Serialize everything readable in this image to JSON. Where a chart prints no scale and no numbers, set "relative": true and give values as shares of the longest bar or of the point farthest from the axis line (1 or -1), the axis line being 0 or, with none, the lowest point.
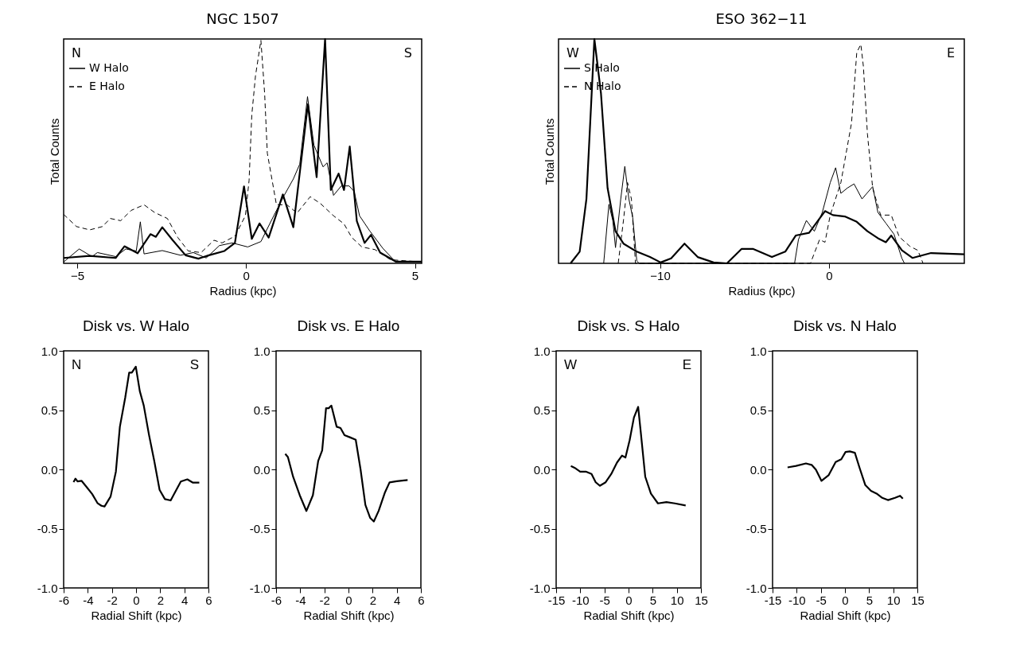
{
  "chart_data": [
    {
      "type": "line",
      "title": "NGC 1507",
      "xlabel": "Radius (kpc)",
      "ylabel": "Total Counts",
      "relative": true,
      "xlim": [
        -5.4,
        5.2
      ],
      "xticks": [
        {
          "value": -5,
          "label": "−5"
        },
        0,
        5
      ],
      "legend": "top left",
      "annotations": [
        "N",
        "S"
      ],
      "series": [
        {
          "color": "#000000",
          "x": [
            -5.4,
            -4.63,
            -3.86,
            -3.6,
            -3.21,
            -2.83,
            -2.67,
            -2.48,
            -2.17,
            -1.79,
            -1.41,
            -1.1,
            -0.64,
            -0.33,
            -0.06,
            0.17,
            0.4,
            0.67,
            1.09,
            1.4,
            1.83,
            2.09,
            2.34,
            2.51,
            2.74,
            2.9,
            3.07,
            3.28,
            3.51,
            3.7,
            3.97,
            4.43,
            5.2
          ],
          "values": [
            0.024,
            0.033,
            0.024,
            0.076,
            0.045,
            0.13,
            0.118,
            0.161,
            0.103,
            0.036,
            0.021,
            0.036,
            0.055,
            0.091,
            0.343,
            0.109,
            0.178,
            0.115,
            0.307,
            0.161,
            0.709,
            0.384,
            1.0,
            0.327,
            0.4,
            0.327,
            0.521,
            0.188,
            0.091,
            0.127,
            0.048,
            0.008,
            0.008
          ]
        },
        {
          "name": "W Halo",
          "color": "#000000",
          "line_style": "solid",
          "x": [
            -5.4,
            -4.94,
            -4.56,
            -4.4,
            -3.86,
            -3.56,
            -3.25,
            -3.13,
            -3.02,
            -2.48,
            -1.94,
            -1.56,
            -1.18,
            -0.79,
            -0.41,
            0.05,
            0.44,
            0.74,
            1.13,
            1.4,
            1.59,
            1.82,
            2.01,
            2.28,
            2.4,
            2.59,
            2.82,
            3.05,
            3.2,
            3.36,
            3.66,
            4.05,
            4.43,
            5.2
          ],
          "values": [
            0.006,
            0.064,
            0.03,
            0.048,
            0.03,
            0.064,
            0.055,
            0.185,
            0.042,
            0.057,
            0.036,
            0.048,
            0.024,
            0.079,
            0.091,
            0.073,
            0.097,
            0.188,
            0.303,
            0.376,
            0.442,
            0.743,
            0.527,
            0.43,
            0.448,
            0.303,
            0.345,
            0.345,
            0.321,
            0.212,
            0.145,
            0.067,
            0.006,
            0.006
          ]
        },
        {
          "name": "E Halo",
          "color": "#000000",
          "line_style": "dashed",
          "x": [
            -5.4,
            -5.02,
            -4.63,
            -4.25,
            -4.02,
            -3.71,
            -3.4,
            -3.02,
            -2.71,
            -2.33,
            -2.02,
            -1.71,
            -1.33,
            -0.95,
            -0.71,
            -0.33,
            -0.02,
            0.09,
            0.17,
            0.28,
            0.44,
            0.55,
            0.63,
            0.9,
            1.21,
            1.51,
            1.9,
            2.2,
            2.59,
            2.9,
            3.13,
            3.43,
            3.82,
            4.28,
            5.2
          ],
          "values": [
            0.218,
            0.164,
            0.149,
            0.164,
            0.2,
            0.19,
            0.236,
            0.261,
            0.227,
            0.2,
            0.115,
            0.055,
            0.048,
            0.103,
            0.091,
            0.121,
            0.212,
            0.37,
            0.661,
            0.836,
            0.994,
            0.758,
            0.491,
            0.261,
            0.261,
            0.224,
            0.297,
            0.267,
            0.212,
            0.176,
            0.115,
            0.073,
            0.061,
            0.016,
            0.006
          ]
        }
      ]
    },
    {
      "type": "line",
      "title": "ESO 362−11",
      "xlabel": "Radius (kpc)",
      "ylabel": "Total Counts",
      "relative": true,
      "xlim": [
        -16,
        8
      ],
      "xticks": [
        {
          "value": -10,
          "label": "−10"
        },
        0
      ],
      "legend": "top left",
      "annotations": [
        "W",
        "E"
      ],
      "series": [
        {
          "color": "#000000",
          "x": [
            -15.29,
            -14.75,
            -14.35,
            -13.88,
            -13.49,
            -13.1,
            -12.63,
            -12.16,
            -11.37,
            -10.59,
            -9.96,
            -9.34,
            -8.55,
            -7.77,
            -6.83,
            -6.04,
            -5.18,
            -4.48,
            -3.38,
            -2.59,
            -1.97,
            -1.18,
            -0.24,
            0.23,
            0.93,
            1.64,
            2.27,
            2.89,
            3.36,
            3.68,
            4.31,
            4.93,
            6.03,
            8.0
          ],
          "values": [
            0,
            0.052,
            0.287,
            1.0,
            0.758,
            0.336,
            0.143,
            0.088,
            0.052,
            0.028,
            0.004,
            0.022,
            0.088,
            0.028,
            0.004,
            0,
            0.064,
            0.064,
            0.028,
            0.052,
            0.124,
            0.136,
            0.233,
            0.215,
            0.209,
            0.185,
            0.143,
            0.112,
            0.094,
            0.124,
            0.058,
            0.024,
            0.046,
            0.04
          ]
        },
        {
          "name": "S Halo",
          "color": "#000000",
          "line_style": "solid",
          "x": [
            -13.33,
            -13.02,
            -12.79,
            -12.63,
            -12.32,
            -12.08,
            -11.84,
            -11.61,
            -11.37,
            -11.22,
            -2.04,
            -1.81,
            -1.34,
            -0.87,
            -0.4,
            0.07,
            0.39,
            0.7,
            1.09,
            1.48,
            1.95,
            2.58,
            2.89,
            3.36,
            3.84,
            4.31,
            4.46
          ],
          "values": [
            0,
            0.263,
            0.191,
            0.07,
            0.287,
            0.432,
            0.287,
            0.203,
            0.01,
            0,
            0,
            0.106,
            0.191,
            0.143,
            0.227,
            0.36,
            0.426,
            0.312,
            0.336,
            0.354,
            0.287,
            0.342,
            0.227,
            0.179,
            0.13,
            0.022,
            0
          ]
        },
        {
          "name": "N Halo",
          "color": "#000000",
          "line_style": "dashed",
          "x": [
            -12.47,
            -12.16,
            -11.92,
            -11.69,
            -11.45,
            -1.1,
            -0.56,
            -0.24,
            0.07,
            0.7,
            1.33,
            1.64,
            1.88,
            2.03,
            2.27,
            2.58,
            3.05,
            3.68,
            4.15,
            4.78,
            5.25,
            5.56
          ],
          "values": [
            0,
            0.191,
            0.36,
            0.287,
            0,
            0,
            0.106,
            0.094,
            0.215,
            0.36,
            0.626,
            0.94,
            0.976,
            0.879,
            0.577,
            0.336,
            0.215,
            0.215,
            0.118,
            0.076,
            0.058,
            0
          ]
        }
      ]
    },
    {
      "type": "line",
      "title": "Disk vs. W Halo",
      "xlabel": "Radial Shift (kpc)",
      "xlim": [
        -6,
        6
      ],
      "xticks": [
        -6,
        -4,
        -2,
        0,
        2,
        4,
        6
      ],
      "ylim": [
        -1,
        1
      ],
      "yticks": [
        {
          "value": -1,
          "label": "-1.0"
        },
        {
          "value": -0.5,
          "label": "-0.5"
        },
        {
          "value": 0,
          "label": "0.0"
        },
        {
          "value": 0.5,
          "label": "0.5"
        },
        {
          "value": 1,
          "label": "1.0"
        }
      ],
      "annotations": [
        "N",
        "S"
      ],
      "series": [
        {
          "color": "#000000",
          "x": [
            -5.18,
            -5.02,
            -4.85,
            -4.52,
            -4.08,
            -3.64,
            -3.2,
            -2.87,
            -2.61,
            -2.11,
            -1.67,
            -1.34,
            -0.9,
            -0.57,
            -0.35,
            -0.02,
            0.31,
            0.64,
            1.07,
            1.51,
            1.95,
            2.39,
            2.87,
            3.16,
            3.71,
            4.25,
            4.69,
            5.24
          ],
          "values": [
            -0.107,
            -0.078,
            -0.102,
            -0.096,
            -0.151,
            -0.207,
            -0.284,
            -0.307,
            -0.313,
            -0.229,
            -0.018,
            0.36,
            0.604,
            0.816,
            0.816,
            0.867,
            0.66,
            0.538,
            0.293,
            0.071,
            -0.173,
            -0.251,
            -0.262,
            -0.207,
            -0.102,
            -0.084,
            -0.111,
            -0.111
          ]
        }
      ]
    },
    {
      "type": "line",
      "title": "Disk vs. E Halo",
      "xlabel": "Radial Shift (kpc)",
      "xlim": [
        -6,
        6
      ],
      "xticks": [
        -6,
        -4,
        -2,
        0,
        2,
        4,
        6
      ],
      "ylim": [
        -1,
        1
      ],
      "yticks": [
        {
          "value": -1,
          "label": "-1.0"
        },
        {
          "value": -0.5,
          "label": "-0.5"
        },
        {
          "value": 0,
          "label": "0.0"
        },
        {
          "value": 0.5,
          "label": "0.5"
        },
        {
          "value": 1,
          "label": "1.0"
        }
      ],
      "series": [
        {
          "color": "#000000",
          "x": [
            -5.24,
            -5.02,
            -4.59,
            -4.04,
            -3.49,
            -2.95,
            -2.51,
            -2.18,
            -1.86,
            -1.64,
            -1.42,
            -0.98,
            -0.66,
            -0.33,
            0.11,
            0.6,
            1.0,
            1.4,
            1.8,
            2.1,
            2.5,
            3.0,
            3.4,
            4.0,
            4.9
          ],
          "values": [
            0.131,
            0.104,
            -0.062,
            -0.218,
            -0.351,
            -0.218,
            0.071,
            0.16,
            0.516,
            0.516,
            0.538,
            0.36,
            0.349,
            0.289,
            0.271,
            0.25,
            0.0,
            -0.3,
            -0.41,
            -0.44,
            -0.35,
            -0.2,
            -0.11,
            -0.1,
            -0.09
          ]
        }
      ]
    },
    {
      "type": "line",
      "title": "Disk vs. S Halo",
      "xlabel": "Radial Shift (kpc)",
      "xlim": [
        -15,
        15
      ],
      "xticks": [
        -15,
        -10,
        -5,
        0,
        5,
        10,
        15
      ],
      "ylim": [
        -1,
        1
      ],
      "yticks": [
        {
          "value": -1,
          "label": "-1.0"
        },
        {
          "value": -0.5,
          "label": "-0.5"
        },
        {
          "value": 0,
          "label": "0.0"
        },
        {
          "value": 0.5,
          "label": "0.5"
        },
        {
          "value": 1,
          "label": "1.0"
        }
      ],
      "annotations": [
        "W",
        "E"
      ],
      "series": [
        {
          "color": "#000000",
          "x": [
            -11.95,
            -11.19,
            -10.02,
            -8.85,
            -7.67,
            -6.8,
            -5.92,
            -4.75,
            -3.57,
            -2.4,
            -1.35,
            -0.64,
            0.23,
            1.11,
            1.99,
            2.58,
            3.46,
            4.63,
            6.09,
            7.85,
            9.61,
            11.83
          ],
          "values": [
            0.029,
            0.014,
            -0.019,
            -0.019,
            -0.038,
            -0.109,
            -0.138,
            -0.109,
            -0.038,
            0.057,
            0.116,
            0.1,
            0.247,
            0.437,
            0.527,
            0.295,
            -0.062,
            -0.204,
            -0.287,
            -0.276,
            -0.287,
            -0.304
          ]
        }
      ]
    },
    {
      "type": "line",
      "title": "Disk vs. N Halo",
      "xlabel": "Radial Shift (kpc)",
      "xlim": [
        -15,
        15
      ],
      "xticks": [
        -15,
        -10,
        -5,
        0,
        5,
        10,
        15
      ],
      "ylim": [
        -1,
        1
      ],
      "yticks": [
        {
          "value": -1,
          "label": "-1.0"
        },
        {
          "value": -0.5,
          "label": "-0.5"
        },
        {
          "value": 0,
          "label": "0.0"
        },
        {
          "value": 0.5,
          "label": "0.5"
        },
        {
          "value": 1,
          "label": "1.0"
        }
      ],
      "series": [
        {
          "color": "#000000",
          "x": [
            -11.89,
            -10.13,
            -8.08,
            -6.91,
            -6.03,
            -4.86,
            -3.4,
            -1.93,
            -0.76,
            0.12,
            1.0,
            2.05,
            3.05,
            4.22,
            5.39,
            6.56,
            7.73,
            8.9,
            10.37,
            11.42,
            11.99
          ],
          "values": [
            0.017,
            0.029,
            0.05,
            0.038,
            -0.002,
            -0.097,
            -0.05,
            0.062,
            0.086,
            0.147,
            0.152,
            0.14,
            0.01,
            -0.133,
            -0.181,
            -0.204,
            -0.24,
            -0.259,
            -0.24,
            -0.223,
            -0.247
          ]
        }
      ]
    }
  ]
}
